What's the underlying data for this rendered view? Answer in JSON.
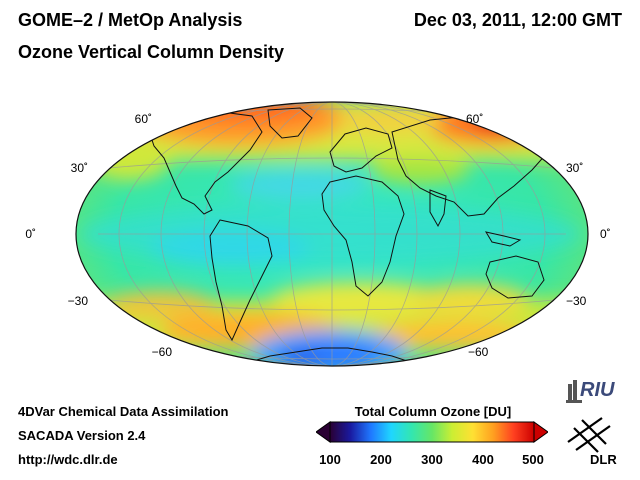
{
  "header": {
    "title": "GOME–2 / MetOp Analysis",
    "subtitle": "Ozone Vertical Column Density",
    "datetime": "Dec 03, 2011, 12:00 GMT"
  },
  "map": {
    "projection": "Hammer-Aitoff",
    "lat_labels_left": [
      "60˚",
      "30˚",
      "0˚",
      "−30",
      "−60"
    ],
    "lat_labels_right": [
      "60˚",
      "30˚",
      "0˚",
      "−30",
      "−60"
    ]
  },
  "colorbar": {
    "title": "Total Column Ozone [DU]",
    "min": 100,
    "max": 500,
    "ticks": [
      "100",
      "200",
      "300",
      "400",
      "500"
    ],
    "colors": [
      "#2a0033",
      "#1a1aa0",
      "#1f78ff",
      "#1fd6ff",
      "#33e6b0",
      "#66e666",
      "#ccee33",
      "#ffe033",
      "#ffa020",
      "#ff4020",
      "#cc0000"
    ]
  },
  "footer": {
    "line1": "4DVar Chemical Data Assimilation",
    "line2": "SACADA Version 2.4",
    "line3": "http://wdc.dlr.de"
  },
  "logos": {
    "riu": "RIU",
    "dlr": "DLR"
  }
}
